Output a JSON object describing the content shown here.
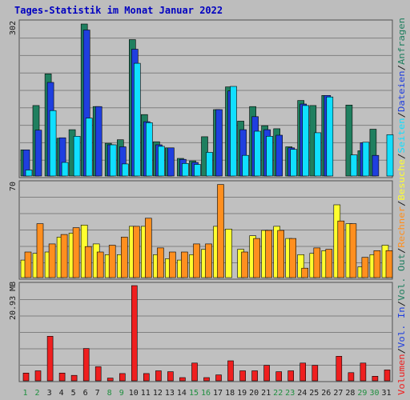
{
  "title": "Tages-Statistik im Monat Januar 2022",
  "colors": {
    "background": "#bdbdbd",
    "panel": "#c0c0c0",
    "grid": "#808080",
    "title": "#0000c0",
    "anfragen": "#1f7f5f",
    "dateien": "#1f3fdf",
    "seiten": "#10dfff",
    "besuche": "#ffff2f",
    "rechner": "#ff8f1f",
    "volumen": "#ef1f1f",
    "weekend_label": "#1f8f3f",
    "weekday_label": "#1a1a1a"
  },
  "chart_data": [
    {
      "type": "bar",
      "name": "anfragen-dateien-seiten",
      "y_max_label": "302",
      "ylim": [
        0,
        302
      ],
      "categories": [
        "1",
        "2",
        "3",
        "4",
        "5",
        "6",
        "7",
        "8",
        "9",
        "10",
        "11",
        "12",
        "13",
        "14",
        "15",
        "16",
        "17",
        "18",
        "19",
        "20",
        "21",
        "22",
        "23",
        "24",
        "25",
        "26",
        "27",
        "28",
        "29",
        "30",
        "31"
      ],
      "weekend_days": [
        "1",
        "2",
        "8",
        "9",
        "15",
        "16",
        "22",
        "23",
        "29",
        "30"
      ],
      "series": [
        {
          "name": "Anfragen",
          "color": "#1f7f5f",
          "values": [
            52,
            140,
            203,
            75,
            92,
            302,
            138,
            65,
            72,
            271,
            122,
            68,
            56,
            35,
            30,
            78,
            132,
            177,
            109,
            138,
            100,
            94,
            58,
            150,
            140,
            160,
            0,
            141,
            50,
            93,
            0
          ]
        },
        {
          "name": "Dateien",
          "color": "#1f3fdf",
          "values": [
            52,
            91,
            186,
            76,
            0,
            290,
            138,
            62,
            58,
            252,
            108,
            62,
            56,
            33,
            27,
            0,
            132,
            169,
            92,
            118,
            92,
            81,
            56,
            143,
            0,
            160,
            0,
            0,
            66,
            41,
            0
          ]
        },
        {
          "name": "Seiten",
          "color": "#10dfff",
          "values": [
            12,
            0,
            130,
            27,
            79,
            115,
            0,
            62,
            24,
            224,
            106,
            59,
            0,
            25,
            23,
            47,
            0,
            178,
            41,
            89,
            79,
            0,
            53,
            140,
            86,
            157,
            0,
            42,
            67,
            0,
            82
          ]
        }
      ],
      "legend_labels": [
        "Dateien",
        "Anfragen"
      ]
    },
    {
      "type": "bar",
      "name": "besuche-rechner",
      "y_max_label": "70",
      "ylim": [
        0,
        70
      ],
      "series": [
        {
          "name": "Besuche",
          "color": "#ffff2f",
          "values": [
            13,
            18,
            19,
            30,
            33,
            39,
            25,
            17,
            17,
            38,
            38,
            17,
            14,
            13,
            17,
            21,
            38,
            36,
            21,
            31,
            35,
            38,
            29,
            17,
            18,
            20,
            54,
            40,
            8,
            17,
            24
          ]
        },
        {
          "name": "Rechner",
          "color": "#ff8f1f",
          "values": [
            19,
            40,
            25,
            32,
            37,
            23,
            19,
            24,
            30,
            38,
            44,
            22,
            19,
            19,
            25,
            25,
            69,
            0,
            19,
            29,
            35,
            35,
            29,
            7,
            22,
            21,
            42,
            40,
            15,
            20,
            20
          ]
        }
      ],
      "legend_labels": [
        "Seiten",
        "Besuche",
        "Rechner",
        "Vol. Out"
      ]
    },
    {
      "type": "bar",
      "name": "volumen",
      "y_max_label": "20.93 MB",
      "ylim": [
        0,
        20.93
      ],
      "series": [
        {
          "name": "Volumen",
          "color": "#ef1f1f",
          "values": [
            1.7,
            2.2,
            9.8,
            1.7,
            1.2,
            7.1,
            3.1,
            0.6,
            1.6,
            20.93,
            1.6,
            2.2,
            2.0,
            0.7,
            3.9,
            0.7,
            1.3,
            4.4,
            2.2,
            2.2,
            3.4,
            2.0,
            2.2,
            3.9,
            3.4,
            0.0,
            5.4,
            1.8,
            3.9,
            1.0,
            2.4
          ]
        }
      ],
      "legend_labels": [
        "Vol. In",
        "Volumen"
      ]
    }
  ]
}
